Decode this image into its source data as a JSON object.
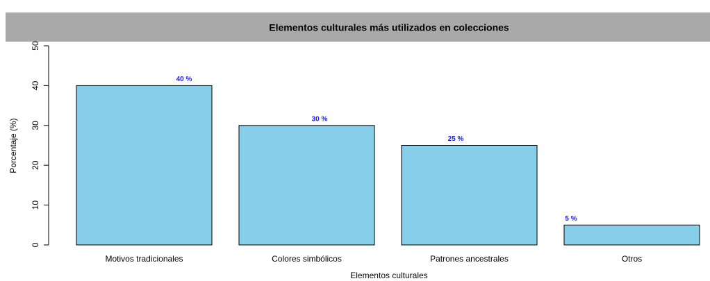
{
  "chart_data": {
    "type": "bar",
    "title": "Elementos culturales más utilizados en colecciones",
    "x_label": "Elementos culturales",
    "y_label": "Porcentaje (%)",
    "categories": [
      "Motivos tradicionales",
      "Colores simbólicos",
      "Patrones ancestrales",
      "Otros"
    ],
    "values": [
      40,
      30,
      25,
      5
    ],
    "value_labels": [
      "40 %",
      "30 %",
      "25 %",
      "5 %"
    ],
    "color": "#87ceeb",
    "ylim": [
      0,
      50
    ],
    "yticks": [
      0,
      10,
      20,
      30,
      40,
      50
    ],
    "grid": false
  }
}
